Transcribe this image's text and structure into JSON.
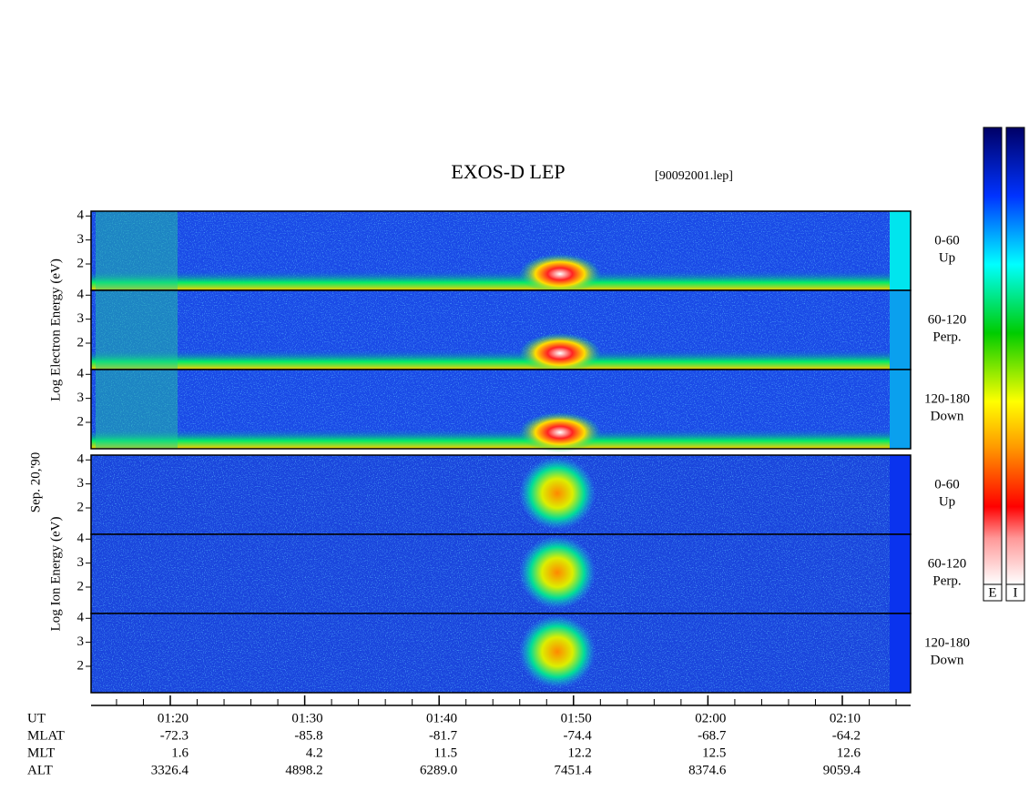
{
  "title": "EXOS-D LEP",
  "file": "[90092001.lep]",
  "electron": {
    "label": "Log  Electron  Energy (eV)",
    "panels": [
      {
        "range": "0-60",
        "dir": "Up"
      },
      {
        "range": "60-120",
        "dir": "Perp."
      },
      {
        "range": "120-180",
        "dir": "Down"
      }
    ]
  },
  "date": "Sep. 20,'90",
  "ion": {
    "label": "Log  Ion  Energy (eV)",
    "panels": [
      {
        "range": "0-60",
        "dir": "Up"
      },
      {
        "range": "60-120",
        "dir": "Perp."
      },
      {
        "range": "120-180",
        "dir": "Down"
      }
    ]
  },
  "ylim": [
    0.9,
    4.2
  ],
  "yticks": [
    2,
    3,
    4
  ],
  "ephemeris": {
    "labels": [
      "UT",
      "MLAT",
      "MLT",
      "ALT"
    ],
    "columns": [
      [
        "01:20",
        "-72.3",
        "1.6",
        "3326.4"
      ],
      [
        "01:30",
        "-85.8",
        "4.2",
        "4898.2"
      ],
      [
        "01:40",
        "-81.7",
        "11.5",
        "6289.0"
      ],
      [
        "01:50",
        "-74.4",
        "12.2",
        "7451.4"
      ],
      [
        "02:00",
        "-68.7",
        "12.5",
        "8374.6"
      ],
      [
        "02:10",
        "-64.2",
        "12.6",
        "9059.4"
      ]
    ]
  },
  "colorbar": [
    "E",
    "I"
  ]
}
